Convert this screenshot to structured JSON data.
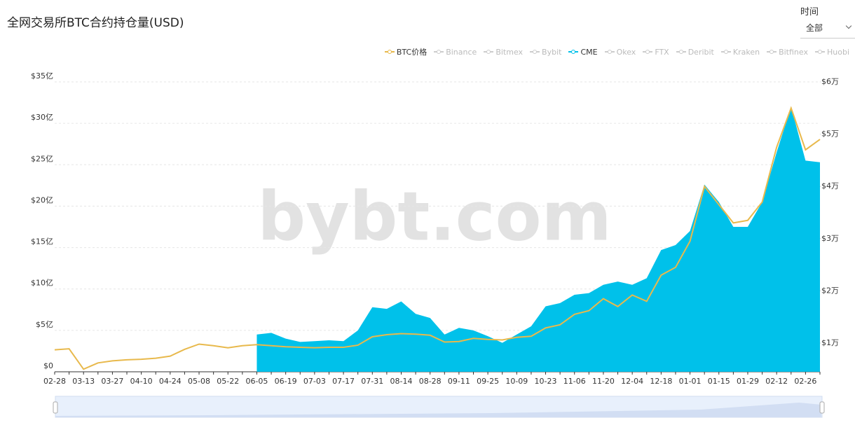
{
  "header": {
    "title": "全网交易所BTC合约持仓量(USD)",
    "filter": {
      "label": "时间",
      "value": "全部"
    },
    "watermark": "bybt.com"
  },
  "chart_data": {
    "type": "line",
    "categories": [
      "02-28",
      null,
      "03-13",
      null,
      "03-27",
      null,
      "04-10",
      null,
      "04-24",
      null,
      "05-08",
      null,
      "05-22",
      null,
      "06-05",
      null,
      "06-19",
      null,
      "07-03",
      null,
      "07-17",
      null,
      "07-31",
      null,
      "08-14",
      null,
      "08-28",
      null,
      "09-11",
      null,
      "09-25",
      null,
      "10-09",
      null,
      "10-23",
      null,
      "11-06",
      null,
      "11-20",
      null,
      "12-04",
      null,
      "12-18",
      null,
      "01-01",
      null,
      "01-15",
      null,
      "01-29",
      null,
      "02-12",
      null,
      "02-26",
      null
    ],
    "series": [
      {
        "name": "BTC价格",
        "color": "#e8b94c",
        "style": "line",
        "axis": "y2",
        "values": [
          0.87,
          0.89,
          0.5,
          0.62,
          0.66,
          0.68,
          0.69,
          0.71,
          0.75,
          0.88,
          0.98,
          0.95,
          0.91,
          0.95,
          0.97,
          0.95,
          0.93,
          0.92,
          0.91,
          0.92,
          0.92,
          0.96,
          1.12,
          1.16,
          1.18,
          1.17,
          1.15,
          1.02,
          1.03,
          1.09,
          1.07,
          1.06,
          1.11,
          1.13,
          1.29,
          1.35,
          1.55,
          1.62,
          1.85,
          1.7,
          1.92,
          1.8,
          2.3,
          2.45,
          2.95,
          4.0,
          3.65,
          3.3,
          3.35,
          3.7,
          4.75,
          5.5,
          4.7,
          4.9
        ]
      },
      {
        "name": "Binance",
        "color": "#cccccc",
        "hidden": true
      },
      {
        "name": "Bitmex",
        "color": "#cccccc",
        "hidden": true
      },
      {
        "name": "Bybit",
        "color": "#cccccc",
        "hidden": true
      },
      {
        "name": "CME",
        "color": "#00c1ea",
        "style": "area",
        "values": [
          null,
          null,
          null,
          null,
          null,
          null,
          null,
          null,
          null,
          null,
          null,
          null,
          null,
          null,
          4.5,
          4.7,
          4.0,
          3.6,
          3.7,
          3.8,
          3.7,
          5.0,
          7.8,
          7.6,
          8.5,
          7.0,
          6.5,
          4.5,
          5.3,
          5.0,
          4.3,
          3.5,
          4.5,
          5.5,
          7.9,
          8.3,
          9.3,
          9.5,
          10.5,
          10.9,
          10.5,
          11.3,
          14.7,
          15.3,
          17.0,
          22.6,
          20.5,
          17.5,
          17.5,
          20.5,
          26.5,
          32.0,
          25.5,
          25.3
        ]
      },
      {
        "name": "Okex",
        "color": "#cccccc",
        "hidden": true
      },
      {
        "name": "FTX",
        "color": "#cccccc",
        "hidden": true
      },
      {
        "name": "Deribit",
        "color": "#cccccc",
        "hidden": true
      },
      {
        "name": "Kraken",
        "color": "#cccccc",
        "hidden": true
      },
      {
        "name": "Bitfinex",
        "color": "#cccccc",
        "hidden": true
      },
      {
        "name": "Huobi",
        "color": "#cccccc",
        "hidden": true
      }
    ],
    "ylim": [
      0,
      35
    ],
    "yticks": [
      {
        "value": 0,
        "label": "$0"
      },
      {
        "value": 5,
        "label": "$5亿"
      },
      {
        "value": 10,
        "label": "$10亿"
      },
      {
        "value": 15,
        "label": "$15亿"
      },
      {
        "value": 20,
        "label": "$20亿"
      },
      {
        "value": 25,
        "label": "$25亿"
      },
      {
        "value": 30,
        "label": "$30亿"
      },
      {
        "value": 35,
        "label": "$35亿"
      }
    ],
    "y2lim": [
      0.45,
      6
    ],
    "y2ticks": [
      {
        "value": 1,
        "label": "$1万"
      },
      {
        "value": 2,
        "label": "$2万"
      },
      {
        "value": 3,
        "label": "$3万"
      },
      {
        "value": 4,
        "label": "$4万"
      },
      {
        "value": 5,
        "label": "$5万"
      },
      {
        "value": 6,
        "label": "$6万"
      }
    ],
    "grid": true
  }
}
